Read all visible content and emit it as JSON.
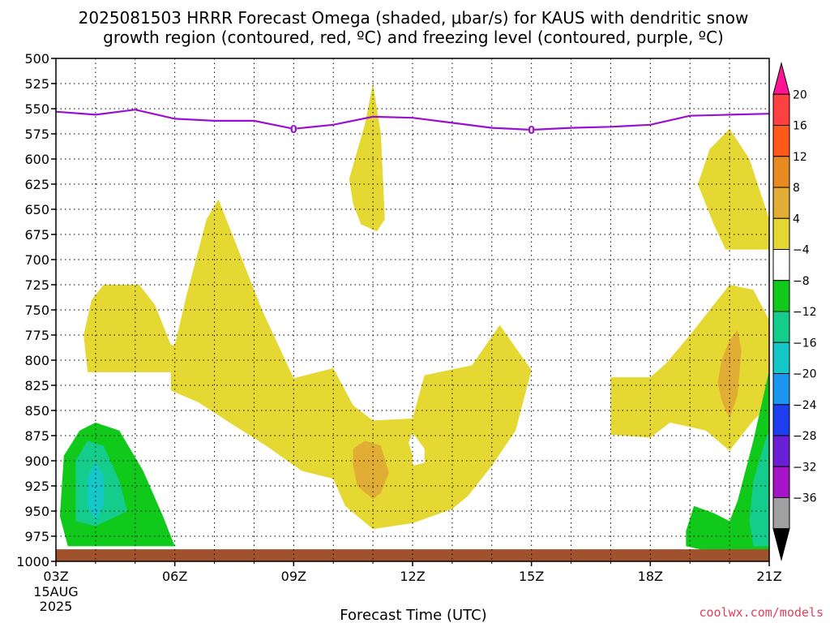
{
  "chart_data": {
    "type": "contour-time-height",
    "title_line1": "2025081503 HRRR Forecast Omega (shaded, μbar/s) for KAUS with dendritic snow",
    "title_line2": "growth region (contoured, red, ºC) and freezing level (contoured, purple, ºC)",
    "xlabel": "Forecast Time (UTC)",
    "credit": "coolwx.com/models",
    "x_ticks": [
      "03Z",
      "06Z",
      "09Z",
      "12Z",
      "15Z",
      "18Z",
      "21Z"
    ],
    "x_date_lines": [
      "15AUG",
      "2025"
    ],
    "x_range": [
      3,
      21
    ],
    "y_range": [
      500,
      1000
    ],
    "y_ticks": [
      "500",
      "525",
      "550",
      "575",
      "600",
      "625",
      "650",
      "675",
      "700",
      "725",
      "750",
      "775",
      "800",
      "825",
      "850",
      "875",
      "900",
      "925",
      "950",
      "975",
      "1000"
    ],
    "grid": true,
    "colorbar": {
      "labels": [
        "20",
        "16",
        "12",
        "8",
        "4",
        "−4",
        "−8",
        "−12",
        "−16",
        "−20",
        "−24",
        "−28",
        "−32",
        "−36"
      ],
      "colors": [
        "#ff1493",
        "#ff4040",
        "#ff5a1a",
        "#e88a1f",
        "#e2ad35",
        "#e5d832",
        "#ffffff",
        "#11c91a",
        "#14cc8c",
        "#14c8c8",
        "#1a96ee",
        "#1e3ff0",
        "#6a1fd6",
        "#a614c8",
        "#a0a0a0",
        "#000000"
      ]
    },
    "freezing_level": {
      "color": "#9a10d0",
      "label": "0",
      "label_at": [
        9.0,
        15.0
      ],
      "x": [
        3.0,
        4.0,
        5.0,
        6.0,
        7.0,
        8.0,
        9.0,
        10.0,
        11.0,
        12.0,
        13.0,
        14.0,
        15.0,
        16.0,
        17.0,
        18.0,
        19.0,
        20.0,
        21.0
      ],
      "p": [
        553,
        556,
        551,
        560,
        562,
        562,
        570,
        566,
        558,
        559,
        564,
        569,
        571,
        569,
        568,
        566,
        557,
        556,
        555
      ]
    },
    "omega_regions": [
      {
        "level": "4 to 8",
        "color": "#e5d832",
        "points": [
          [
            4.2,
            725
          ],
          [
            5.1,
            725
          ],
          [
            5.5,
            745
          ],
          [
            5.9,
            785
          ],
          [
            5.9,
            812
          ],
          [
            3.8,
            812
          ],
          [
            3.7,
            775
          ],
          [
            3.9,
            740
          ]
        ]
      },
      {
        "level": "4 to 8",
        "color": "#e5d832",
        "points": [
          [
            6.0,
            785
          ],
          [
            6.3,
            735
          ],
          [
            6.8,
            660
          ],
          [
            7.1,
            640
          ],
          [
            7.5,
            680
          ],
          [
            8.2,
            750
          ],
          [
            9.0,
            818
          ],
          [
            10.0,
            808
          ],
          [
            10.5,
            845
          ],
          [
            11.0,
            860
          ],
          [
            12.0,
            858
          ],
          [
            12.3,
            815
          ],
          [
            13.5,
            805
          ],
          [
            14.2,
            765
          ],
          [
            15.0,
            810
          ],
          [
            14.6,
            870
          ],
          [
            14.0,
            905
          ],
          [
            13.4,
            935
          ],
          [
            13.0,
            948
          ],
          [
            12.0,
            962
          ],
          [
            11.0,
            968
          ],
          [
            10.3,
            945
          ],
          [
            10.0,
            918
          ],
          [
            9.2,
            910
          ],
          [
            8.3,
            885
          ],
          [
            7.3,
            860
          ],
          [
            6.6,
            842
          ],
          [
            5.9,
            830
          ],
          [
            5.9,
            785
          ]
        ]
      },
      {
        "level": "4 to 8",
        "color": "#e5d832",
        "points": [
          [
            10.4,
            620
          ],
          [
            10.8,
            565
          ],
          [
            11.0,
            525
          ],
          [
            11.2,
            575
          ],
          [
            11.3,
            660
          ],
          [
            11.1,
            672
          ],
          [
            10.7,
            665
          ],
          [
            10.5,
            645
          ]
        ]
      },
      {
        "level": "4 to 8",
        "color": "#e5d832",
        "points": [
          [
            19.2,
            625
          ],
          [
            19.5,
            590
          ],
          [
            20.0,
            570
          ],
          [
            20.5,
            600
          ],
          [
            21.0,
            660
          ],
          [
            21.0,
            690
          ],
          [
            19.9,
            690
          ],
          [
            19.6,
            665
          ]
        ]
      },
      {
        "level": "4 to 8",
        "color": "#e5d832",
        "points": [
          [
            17.0,
            817
          ],
          [
            18.0,
            817
          ],
          [
            18.4,
            803
          ],
          [
            19.0,
            775
          ],
          [
            20.0,
            725
          ],
          [
            20.6,
            730
          ],
          [
            21.0,
            760
          ],
          [
            21.0,
            845
          ],
          [
            20.6,
            860
          ],
          [
            20.0,
            890
          ],
          [
            19.4,
            870
          ],
          [
            18.5,
            862
          ],
          [
            18.0,
            877
          ],
          [
            17.0,
            874
          ]
        ]
      },
      {
        "level": "8 to 12",
        "color": "#e2ad35",
        "points": [
          [
            10.5,
            888
          ],
          [
            10.8,
            880
          ],
          [
            11.2,
            885
          ],
          [
            11.4,
            912
          ],
          [
            11.2,
            932
          ],
          [
            11.0,
            938
          ],
          [
            10.6,
            925
          ],
          [
            10.5,
            905
          ]
        ]
      },
      {
        "level": "8 to 12",
        "color": "#e2ad35",
        "points": [
          [
            19.8,
            800
          ],
          [
            20.0,
            780
          ],
          [
            20.2,
            770
          ],
          [
            20.3,
            790
          ],
          [
            20.2,
            835
          ],
          [
            20.0,
            858
          ],
          [
            19.8,
            840
          ],
          [
            19.7,
            822
          ]
        ]
      }
    ],
    "omega_holes": [
      {
        "points": [
          [
            12.0,
            872
          ],
          [
            12.3,
            888
          ],
          [
            12.3,
            902
          ],
          [
            12.0,
            905
          ],
          [
            12.0,
            895
          ],
          [
            11.9,
            882
          ]
        ]
      }
    ],
    "omega_negative": [
      {
        "level": "-4 to -8",
        "color": "#11c91a",
        "points": [
          [
            3.2,
            895
          ],
          [
            3.6,
            870
          ],
          [
            4.0,
            862
          ],
          [
            4.6,
            870
          ],
          [
            5.2,
            910
          ],
          [
            5.7,
            955
          ],
          [
            6.0,
            985
          ],
          [
            3.3,
            985
          ],
          [
            3.1,
            955
          ]
        ]
      },
      {
        "level": "-8 to -12",
        "color": "#14cc8c",
        "points": [
          [
            3.5,
            900
          ],
          [
            3.8,
            880
          ],
          [
            4.2,
            885
          ],
          [
            4.6,
            920
          ],
          [
            4.8,
            950
          ],
          [
            4.0,
            965
          ],
          [
            3.5,
            960
          ]
        ]
      },
      {
        "level": "-12 to -16",
        "color": "#14c8c8",
        "points": [
          [
            3.8,
            915
          ],
          [
            4.0,
            902
          ],
          [
            4.2,
            915
          ],
          [
            4.2,
            945
          ],
          [
            4.0,
            960
          ],
          [
            3.8,
            945
          ]
        ]
      },
      {
        "level": "-4 to -8",
        "color": "#11c91a",
        "points": [
          [
            18.9,
            970
          ],
          [
            19.1,
            945
          ],
          [
            19.6,
            952
          ],
          [
            20.0,
            960
          ],
          [
            20.2,
            940
          ],
          [
            20.6,
            880
          ],
          [
            21.0,
            810
          ],
          [
            21.0,
            990
          ],
          [
            19.5,
            990
          ],
          [
            18.9,
            985
          ]
        ]
      },
      {
        "level": "-8 to -12",
        "color": "#14cc8c",
        "points": [
          [
            20.5,
            960
          ],
          [
            20.6,
            920
          ],
          [
            20.9,
            880
          ],
          [
            21.0,
            870
          ],
          [
            21.0,
            985
          ],
          [
            20.6,
            985
          ]
        ]
      }
    ],
    "surface": {
      "color": "#a0522d",
      "p_top": 988
    }
  }
}
